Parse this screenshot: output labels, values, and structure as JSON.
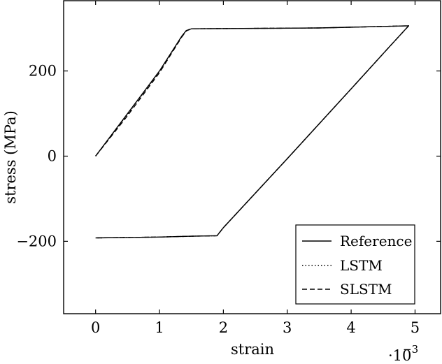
{
  "chart_data": {
    "type": "line",
    "xlabel": "strain",
    "ylabel": "stress (MPa)",
    "x_scale_label": "·10",
    "x_scale_exponent": "−3",
    "xlim": [
      -0.5,
      5.4
    ],
    "ylim": [
      -370,
      365
    ],
    "x_ticks": [
      {
        "value": 0,
        "label": "0"
      },
      {
        "value": 1,
        "label": "1"
      },
      {
        "value": 2,
        "label": "2"
      },
      {
        "value": 3,
        "label": "3"
      },
      {
        "value": 4,
        "label": "4"
      },
      {
        "value": 5,
        "label": "5"
      }
    ],
    "y_ticks": [
      {
        "value": -200,
        "label": "−200"
      },
      {
        "value": 0,
        "label": "0"
      },
      {
        "value": 200,
        "label": "200"
      }
    ],
    "legend_position": "bottom-right",
    "series": [
      {
        "name": "Reference",
        "style": "solid",
        "x": [
          0,
          0.5,
          1.0,
          1.35,
          1.42,
          1.5,
          2.5,
          3.5,
          4.9,
          4.6,
          4.0,
          3.0,
          2.0,
          1.9,
          1.5,
          1.0,
          0.5,
          0
        ],
        "y": [
          0,
          100,
          200,
          282,
          295,
          299,
          300,
          301,
          306,
          257,
          158,
          -6,
          -168,
          -187,
          -188,
          -190,
          -191,
          -192
        ]
      },
      {
        "name": "LSTM",
        "style": "dotted",
        "x": [
          0,
          0.5,
          1.0,
          1.35,
          1.42,
          1.5,
          2.5,
          3.5,
          4.9,
          4.6,
          4.0,
          3.0,
          2.0,
          1.9,
          1.5,
          1.0,
          0.5,
          0
        ],
        "y": [
          0,
          98,
          199,
          281,
          295,
          299,
          300,
          301,
          306,
          257,
          158,
          -6,
          -168,
          -187,
          -188,
          -190,
          -191,
          -192
        ]
      },
      {
        "name": "SLSTM",
        "style": "dashed",
        "x": [
          0,
          0.5,
          1.0,
          1.35,
          1.42,
          1.5,
          2.5,
          3.5,
          4.9,
          4.6,
          4.0,
          3.0,
          2.0,
          1.9,
          1.5,
          1.0,
          0.5,
          0
        ],
        "y": [
          0,
          95,
          196,
          280,
          294,
          299,
          300,
          301,
          306,
          257,
          158,
          -6,
          -168,
          -187,
          -188,
          -190,
          -191,
          -192
        ]
      }
    ]
  }
}
